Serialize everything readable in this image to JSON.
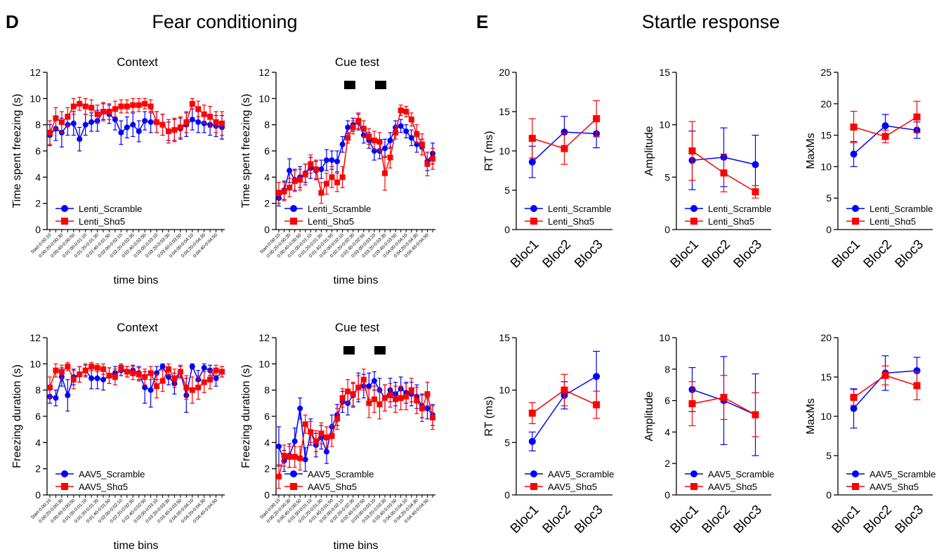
{
  "panels": [
    {
      "letter": "D",
      "title": "Fear conditioning"
    },
    {
      "letter": "E",
      "title": "Startle response"
    }
  ],
  "chart_data": [
    {
      "type": "line",
      "title": "Context",
      "ylabel": "Time spent freezing (s)",
      "xlabel": "time bins",
      "categories": [
        "Start-0:00:10",
        null,
        "0:00:20-0:00:30",
        null,
        "0:00:40-0:00:50",
        null,
        "0:01:00-0:01:10",
        null,
        "0:01:20-0:01:30",
        null,
        "0:01:40-0:01:50",
        null,
        "0:02:00-0:02:10",
        null,
        "0:02:20-0:02:30",
        null,
        "0:02:40-0:02:50",
        null,
        "0:03:00-0:03:10",
        null,
        "0:03:20-0:03:30",
        null,
        "0:03:40-0:03:50",
        null,
        "0:04:00-0:04:10",
        null,
        "0:04:20-0:04:30",
        null,
        "0:04:40-0:04:50",
        null
      ],
      "ylim": [
        0,
        12
      ],
      "yticks": [
        0,
        2,
        4,
        6,
        8,
        10,
        12
      ],
      "series": [
        {
          "name": "Lenti_Scramble",
          "color": "#0000ff",
          "marker": "circle",
          "values": [
            7.2,
            7.7,
            7.4,
            8.0,
            8.1,
            6.9,
            8.0,
            8.2,
            8.3,
            9.0,
            8.8,
            8.4,
            7.4,
            7.8,
            8.0,
            7.5,
            8.3,
            8.2,
            8.2,
            8.0,
            7.5,
            7.6,
            7.7,
            8.0,
            8.4,
            8.2,
            8.1,
            8.0,
            7.9,
            7.8
          ],
          "errors": [
            0.8,
            0.9,
            1.1,
            0.8,
            0.9,
            0.9,
            0.8,
            0.7,
            0.8,
            0.6,
            0.7,
            0.8,
            0.9,
            0.8,
            0.9,
            0.8,
            0.7,
            0.8,
            0.8,
            0.8,
            0.7,
            0.8,
            0.8,
            0.9,
            0.8,
            0.8,
            0.7,
            0.8,
            0.8,
            0.9
          ]
        },
        {
          "name": "Lenti_Shα5",
          "color": "#ff0000",
          "marker": "square",
          "values": [
            7.4,
            8.5,
            8.2,
            8.6,
            9.4,
            9.6,
            9.4,
            9.3,
            8.8,
            9.0,
            9.0,
            9.2,
            9.4,
            9.4,
            9.5,
            9.5,
            9.6,
            9.4,
            8.2,
            8.0,
            7.5,
            7.6,
            7.8,
            8.2,
            9.6,
            9.2,
            8.8,
            8.6,
            8.2,
            8.1
          ],
          "errors": [
            0.9,
            0.8,
            0.8,
            0.7,
            0.6,
            0.5,
            0.6,
            0.6,
            0.7,
            0.7,
            0.6,
            0.6,
            0.5,
            0.5,
            0.5,
            0.5,
            0.4,
            0.5,
            0.8,
            0.8,
            0.9,
            0.9,
            0.8,
            0.8,
            0.4,
            0.6,
            0.7,
            0.8,
            0.8,
            0.9
          ]
        }
      ]
    },
    {
      "type": "line",
      "title": "Cue test",
      "ylabel": "Time spent freezing (s)",
      "xlabel": "time bins",
      "categories": [
        "Start-0:00:10",
        null,
        "0:00:20-0:00:30",
        null,
        "0:00:40-0:00:50",
        null,
        "0:01:00-0:01:10",
        null,
        "0:01:20-0:01:30",
        null,
        "0:01:40-0:01:50",
        null,
        "0:02:00-0:02:10",
        null,
        "0:02:20-0:02:30",
        null,
        "0:02:40-0:02:50",
        null,
        "0:03:00-0:03:10",
        null,
        "0:03:20-0:03:30",
        null,
        "0:03:40-0:03:50",
        null,
        "0:04:00-0:04:10",
        null,
        "0:04:20-0:04:30",
        null,
        "0:04:40-0:04:50",
        null
      ],
      "ylim": [
        0,
        12
      ],
      "yticks": [
        0,
        2,
        4,
        6,
        8,
        10,
        12
      ],
      "series": [
        {
          "name": "Lenti_Scramble",
          "color": "#0000ff",
          "marker": "circle",
          "values": [
            2.4,
            3.0,
            4.5,
            3.8,
            4.0,
            4.3,
            4.7,
            4.5,
            4.6,
            5.3,
            5.3,
            5.2,
            6.5,
            7.8,
            8.0,
            8.2,
            7.2,
            6.8,
            6.0,
            6.0,
            6.2,
            6.8,
            7.8,
            7.9,
            7.5,
            7.0,
            6.5,
            6.3,
            5.2,
            5.8
          ],
          "errors": [
            0.6,
            0.7,
            0.9,
            0.8,
            0.8,
            0.7,
            0.8,
            0.7,
            0.7,
            0.8,
            0.7,
            0.8,
            0.6,
            0.5,
            0.5,
            0.6,
            0.6,
            0.6,
            0.7,
            0.6,
            0.7,
            0.6,
            0.5,
            0.5,
            0.5,
            0.6,
            0.6,
            0.6,
            0.7,
            0.8
          ]
        },
        {
          "name": "Lenti_Shα5",
          "color": "#ff0000",
          "marker": "square",
          "values": [
            2.8,
            2.9,
            3.2,
            3.7,
            3.8,
            4.2,
            5.0,
            4.6,
            2.8,
            3.5,
            4.0,
            3.6,
            4.0,
            7.0,
            7.8,
            8.3,
            7.7,
            7.1,
            6.8,
            6.7,
            4.3,
            5.5,
            7.4,
            9.1,
            9.0,
            8.4,
            7.3,
            6.5,
            5.0,
            5.4
          ],
          "errors": [
            0.8,
            0.7,
            0.7,
            0.8,
            0.8,
            0.8,
            0.7,
            0.7,
            0.8,
            0.8,
            0.8,
            0.7,
            0.8,
            0.4,
            0.5,
            0.6,
            0.6,
            0.6,
            0.7,
            0.7,
            1.3,
            0.8,
            0.5,
            0.4,
            0.4,
            0.5,
            0.7,
            0.8,
            0.9,
            0.8
          ]
        }
      ]
    },
    {
      "type": "line",
      "ylabel": "RT (ms)",
      "categories": [
        "Bloc1",
        "Bloc2",
        "Bloc3"
      ],
      "ylim": [
        0,
        20
      ],
      "yticks": [
        0,
        5,
        10,
        15,
        20
      ],
      "series": [
        {
          "name": "Lenti_Scramble",
          "color": "#0000ff",
          "marker": "circle",
          "values": [
            8.6,
            12.4,
            12.2
          ],
          "errors": [
            2.0,
            2.0,
            1.8
          ]
        },
        {
          "name": "Lenti_Shα5",
          "color": "#ff0000",
          "marker": "square",
          "values": [
            11.6,
            10.3,
            14.1
          ],
          "errors": [
            2.5,
            2.0,
            2.3
          ]
        }
      ]
    },
    {
      "type": "line",
      "ylabel": "Amplitude",
      "categories": [
        "Bloc1",
        "Bloc2",
        "Bloc3"
      ],
      "ylim": [
        0,
        15
      ],
      "yticks": [
        0,
        5,
        10,
        15
      ],
      "series": [
        {
          "name": "Lenti_Scramble",
          "color": "#0000ff",
          "marker": "circle",
          "values": [
            6.6,
            6.9,
            6.2
          ],
          "errors": [
            2.8,
            2.8,
            2.8
          ]
        },
        {
          "name": "Lenti_Shα5",
          "color": "#ff0000",
          "marker": "square",
          "values": [
            7.5,
            5.4,
            3.6
          ],
          "errors": [
            2.8,
            1.8,
            0.6
          ]
        }
      ]
    },
    {
      "type": "line",
      "ylabel": "MaxMs",
      "categories": [
        "Bloc1",
        "Bloc2",
        "Bloc3"
      ],
      "ylim": [
        0,
        25
      ],
      "yticks": [
        0,
        5,
        10,
        15,
        20,
        25
      ],
      "series": [
        {
          "name": "Lenti_Scramble",
          "color": "#0000ff",
          "marker": "circle",
          "values": [
            12.0,
            16.5,
            15.8
          ],
          "errors": [
            2.0,
            1.8,
            1.3
          ]
        },
        {
          "name": "Lenti_Shα5",
          "color": "#ff0000",
          "marker": "square",
          "values": [
            16.3,
            14.8,
            17.9
          ],
          "errors": [
            2.5,
            1.0,
            2.5
          ]
        }
      ]
    },
    {
      "type": "line",
      "title": "Context",
      "ylabel": "Freezing duration (s)",
      "xlabel": "time bins",
      "categories": [
        "Start-0:00:10",
        null,
        "0:00:20-0:00:30",
        null,
        "0:00:40-0:00:50",
        null,
        "0:01:00-0:01:10",
        null,
        "0:01:20-0:01:30",
        null,
        "0:01:40-0:01:50",
        null,
        "0:02:00-0:02:10",
        null,
        "0:02:20-0:02:30",
        null,
        "0:02:40-0:02:50",
        null,
        "0:03:00-0:03:10",
        null,
        "0:03:20-0:03:30",
        null,
        "0:03:40-0:03:50",
        null,
        "0:04:00-0:04:10",
        null,
        "0:04:20-0:04:30",
        null,
        "0:04:40-0:04:50",
        null
      ],
      "ylim": [
        0,
        12
      ],
      "yticks": [
        0,
        2,
        4,
        6,
        8,
        10,
        12
      ],
      "series": [
        {
          "name": "AAV5_Scramble",
          "color": "#0000ff",
          "marker": "circle",
          "values": [
            7.5,
            7.4,
            9.0,
            7.6,
            9.0,
            9.2,
            9.5,
            8.9,
            8.9,
            8.8,
            9.1,
            9.3,
            9.5,
            9.4,
            9.5,
            9.3,
            8.2,
            8.0,
            9.3,
            9.8,
            9.0,
            8.5,
            9.4,
            7.6,
            9.8,
            8.8,
            9.7,
            9.5,
            8.9,
            9.4
          ],
          "errors": [
            0.5,
            0.6,
            0.7,
            1.2,
            0.6,
            0.6,
            0.4,
            0.8,
            0.8,
            0.8,
            0.6,
            0.5,
            0.4,
            0.4,
            0.4,
            0.5,
            1.2,
            1.3,
            0.5,
            0.2,
            0.6,
            0.8,
            0.4,
            1.3,
            0.2,
            0.7,
            0.3,
            0.4,
            0.6,
            0.4
          ]
        },
        {
          "name": "AAV5_Shα5",
          "color": "#ff0000",
          "marker": "square",
          "values": [
            8.2,
            9.5,
            9.4,
            9.8,
            8.8,
            9.2,
            9.5,
            9.8,
            9.7,
            9.6,
            9.1,
            9.0,
            9.7,
            9.4,
            9.3,
            9.2,
            9.0,
            9.3,
            8.3,
            8.7,
            9.6,
            8.9,
            9.4,
            8.2,
            8.0,
            8.2,
            8.6,
            8.8,
            9.5,
            9.4
          ],
          "errors": [
            0.8,
            0.5,
            0.5,
            0.3,
            0.7,
            0.6,
            0.5,
            0.3,
            0.3,
            0.4,
            0.6,
            0.6,
            0.3,
            0.4,
            0.5,
            0.5,
            0.6,
            0.5,
            0.9,
            0.8,
            0.4,
            0.7,
            0.5,
            0.9,
            1.0,
            0.9,
            0.8,
            0.7,
            0.4,
            0.4
          ]
        }
      ]
    },
    {
      "type": "line",
      "title": "Cue test",
      "ylabel": "Freezing duration (s)",
      "xlabel": "time bins",
      "categories": [
        "Start-0:00:10",
        null,
        "0:00:20-0:00:30",
        null,
        "0:00:40-0:00:50",
        null,
        "0:01:00-0:01:10",
        null,
        "0:01:20-0:01:30",
        null,
        "0:01:40-0:01:50",
        null,
        "0:02:00-0:02:10",
        null,
        "0:02:20-0:02:30",
        null,
        "0:02:40-0:02:50",
        null,
        "0:03:00-0:03:10",
        null,
        "0:03:20-0:03:30",
        null,
        "0:03:40-0:03:50",
        null,
        "0:04:00-0:04:10",
        null,
        "0:04:20-0:04:30",
        null,
        "0:04:40-0:04:50",
        null
      ],
      "ylim": [
        0,
        12
      ],
      "yticks": [
        0,
        2,
        4,
        6,
        8,
        10,
        12
      ],
      "series": [
        {
          "name": "AAV5_Scramble",
          "color": "#0000ff",
          "marker": "circle",
          "values": [
            3.7,
            2.6,
            3.0,
            4.1,
            6.6,
            2.7,
            4.8,
            3.8,
            4.4,
            3.3,
            5.2,
            6.1,
            7.1,
            7.0,
            7.6,
            8.2,
            8.3,
            8.3,
            8.7,
            8.0,
            7.4,
            8.0,
            7.7,
            8.1,
            7.8,
            7.7,
            7.5,
            6.8,
            6.6,
            6.1
          ],
          "errors": [
            1.5,
            0.8,
            0.9,
            1.0,
            0.8,
            0.9,
            1.0,
            0.9,
            0.9,
            0.9,
            0.9,
            0.8,
            0.8,
            0.9,
            0.9,
            1.1,
            0.9,
            1.0,
            0.7,
            0.9,
            1.0,
            0.9,
            0.9,
            0.9,
            0.8,
            0.9,
            0.9,
            0.9,
            0.8,
            0.8
          ]
        },
        {
          "name": "AAV5_Shα5",
          "color": "#ff0000",
          "marker": "square",
          "values": [
            1.4,
            3.0,
            2.9,
            2.9,
            2.8,
            5.4,
            4.8,
            4.1,
            4.7,
            4.4,
            4.5,
            5.8,
            7.4,
            7.9,
            7.7,
            8.2,
            8.8,
            7.0,
            7.3,
            6.9,
            7.4,
            7.6,
            7.3,
            7.4,
            7.5,
            8.0,
            7.2,
            6.6,
            7.7,
            5.9
          ],
          "errors": [
            0.9,
            0.8,
            0.8,
            0.8,
            0.9,
            0.7,
            0.8,
            0.8,
            0.8,
            0.8,
            0.8,
            0.8,
            0.7,
            0.9,
            0.9,
            0.9,
            0.8,
            1.1,
            1.0,
            1.1,
            1.0,
            0.9,
            1.0,
            0.9,
            1.0,
            0.9,
            1.0,
            1.0,
            0.9,
            0.9
          ]
        }
      ]
    },
    {
      "type": "line",
      "ylabel": "RT (ms)",
      "categories": [
        "Bloc1",
        "Bloc2",
        "Bloc3"
      ],
      "ylim": [
        0,
        15
      ],
      "yticks": [
        0,
        5,
        10,
        15
      ],
      "series": [
        {
          "name": "AAV5_Scramble",
          "color": "#0000ff",
          "marker": "circle",
          "values": [
            5.1,
            9.5,
            11.3
          ],
          "errors": [
            0.9,
            1.3,
            2.4
          ]
        },
        {
          "name": "AAV5_Shα5",
          "color": "#ff0000",
          "marker": "square",
          "values": [
            7.8,
            10.0,
            8.6
          ],
          "errors": [
            1.0,
            1.5,
            1.3
          ]
        }
      ]
    },
    {
      "type": "line",
      "ylabel": "Amplitude",
      "categories": [
        "Bloc1",
        "Bloc2",
        "Bloc3"
      ],
      "ylim": [
        0,
        10
      ],
      "yticks": [
        0,
        2,
        4,
        6,
        8,
        10
      ],
      "series": [
        {
          "name": "AAV5_Scramble",
          "color": "#0000ff",
          "marker": "circle",
          "values": [
            6.7,
            6.0,
            5.1
          ],
          "errors": [
            1.4,
            2.8,
            2.6
          ]
        },
        {
          "name": "AAV5_Shα5",
          "color": "#ff0000",
          "marker": "square",
          "values": [
            5.8,
            6.2,
            5.1
          ],
          "errors": [
            1.4,
            1.4,
            1.4
          ]
        }
      ]
    },
    {
      "type": "line",
      "ylabel": "MaxMs",
      "categories": [
        "Bloc1",
        "Bloc2",
        "Bloc3"
      ],
      "ylim": [
        0,
        20
      ],
      "yticks": [
        0,
        5,
        10,
        15,
        20
      ],
      "series": [
        {
          "name": "AAV5_Scramble",
          "color": "#0000ff",
          "marker": "circle",
          "values": [
            11.0,
            15.5,
            15.8
          ],
          "errors": [
            2.5,
            2.2,
            1.7
          ]
        },
        {
          "name": "AAV5_Shα5",
          "color": "#ff0000",
          "marker": "square",
          "values": [
            12.4,
            15.2,
            13.9
          ],
          "errors": [
            1.0,
            1.2,
            1.8
          ]
        }
      ]
    }
  ]
}
